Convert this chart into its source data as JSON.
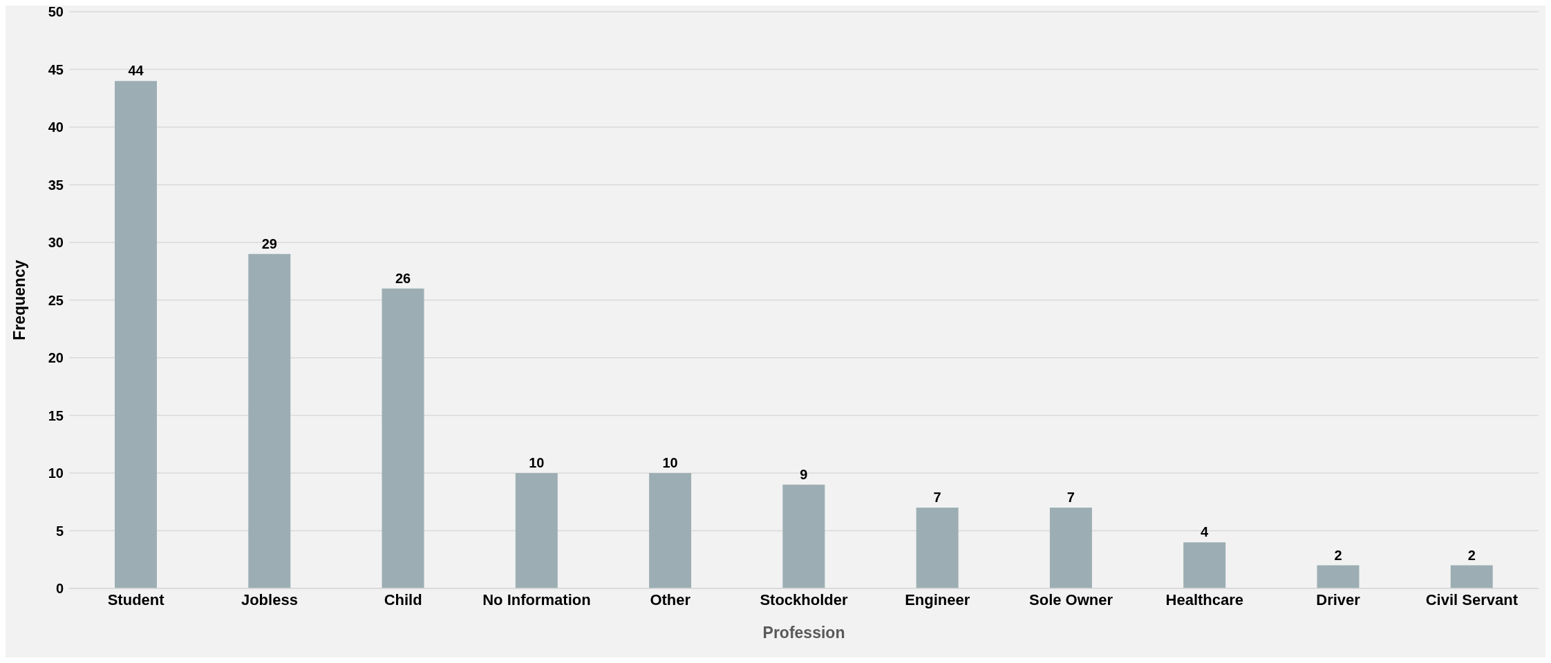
{
  "chart_data": {
    "type": "bar",
    "xlabel": "Profession",
    "ylabel": "Frequency",
    "categories": [
      "Student",
      "Jobless",
      "Child",
      "No Information",
      "Other",
      "Stockholder",
      "Engineer",
      "Sole Owner",
      "Healthcare",
      "Driver",
      "Civil Servant"
    ],
    "values": [
      44,
      29,
      26,
      10,
      10,
      9,
      7,
      7,
      4,
      2,
      2
    ],
    "color": "#9caeb3",
    "ylim": [
      0,
      50
    ],
    "yticks": [
      0,
      5,
      10,
      15,
      20,
      25,
      30,
      35,
      40,
      45,
      50
    ],
    "grid": "y",
    "data_labels": true,
    "legend": false
  }
}
